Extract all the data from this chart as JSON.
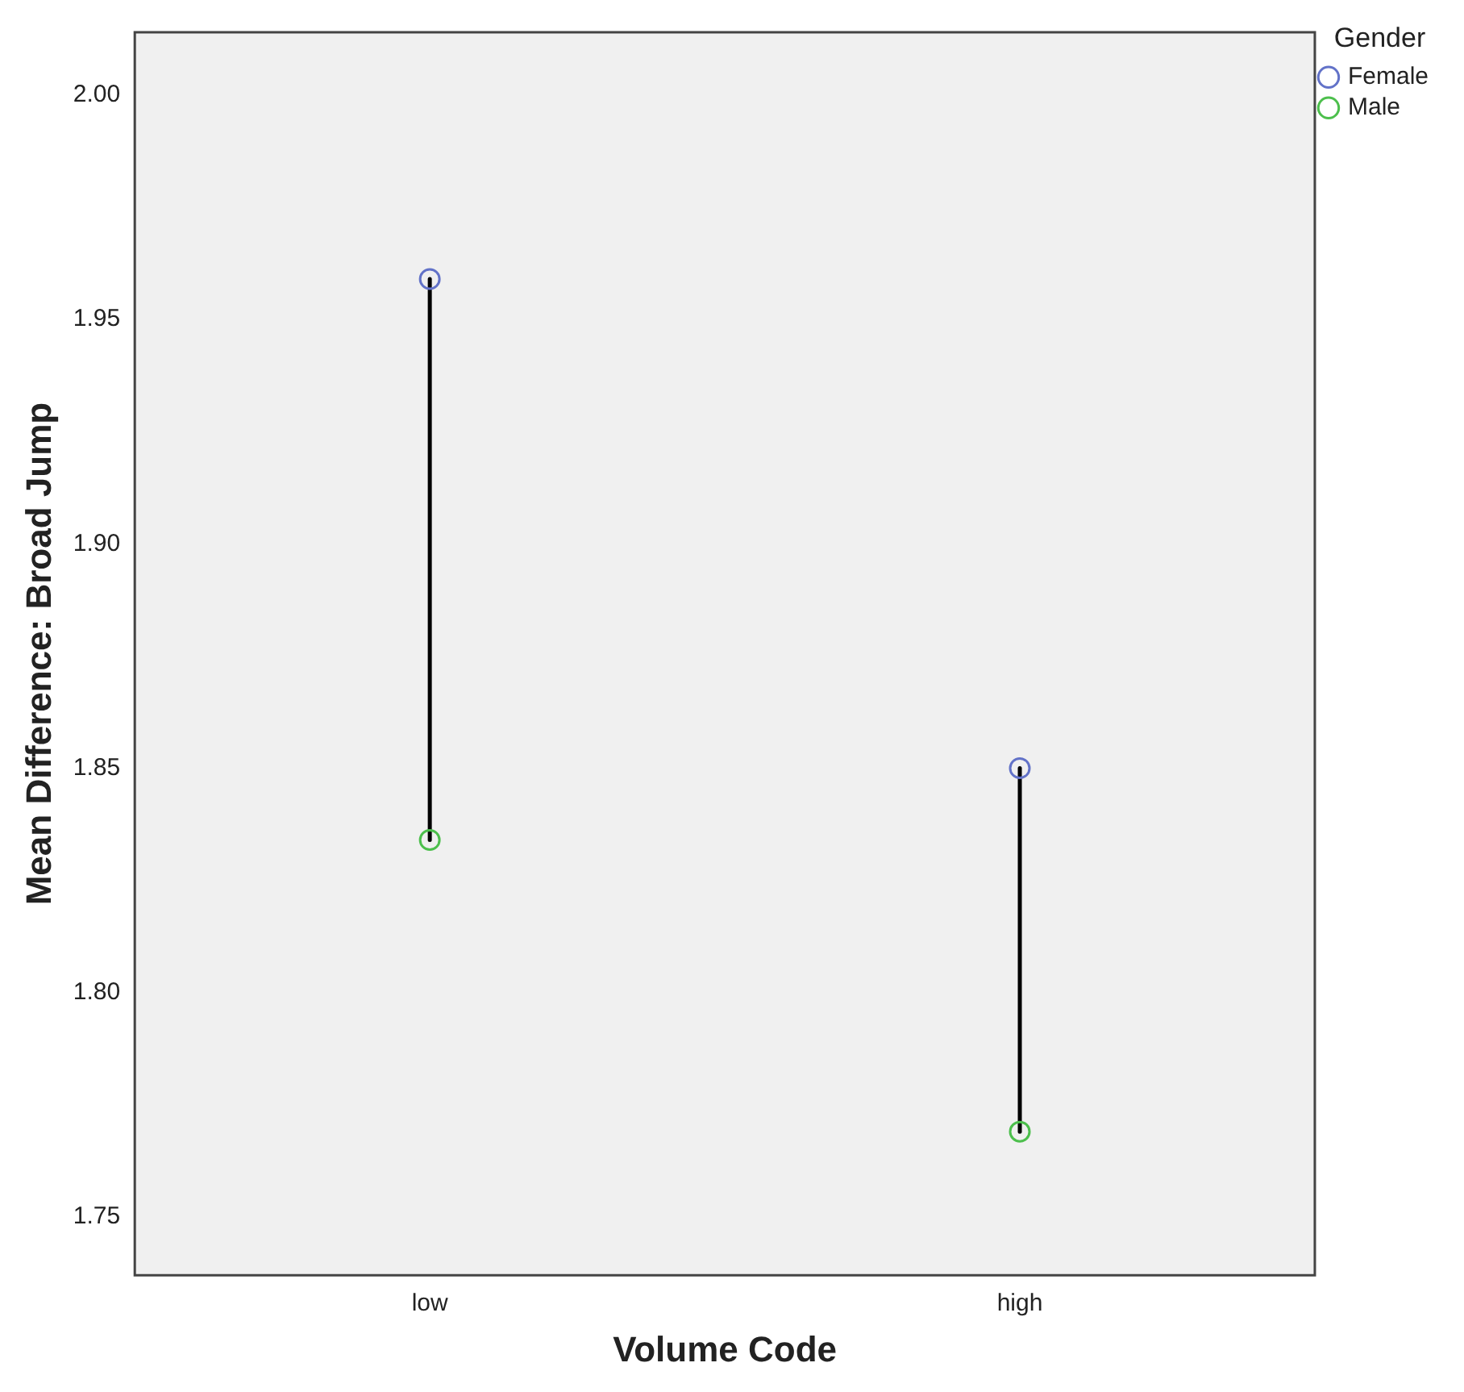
{
  "chart_data": {
    "type": "scatter",
    "xlabel": "Volume Code",
    "ylabel": "Mean Difference: Broad Jump",
    "legend_title": "Gender",
    "categories": [
      "low",
      "high"
    ],
    "series": [
      {
        "name": "Female",
        "color": "#6272c8",
        "values": [
          1.959,
          1.85
        ]
      },
      {
        "name": "Male",
        "color": "#4cbf4c",
        "values": [
          1.834,
          1.769
        ]
      }
    ],
    "ylim": [
      1.737,
      2.014
    ],
    "yticks": [
      {
        "value": 1.75,
        "label": "1.75"
      },
      {
        "value": 1.8,
        "label": "1.80"
      },
      {
        "value": 1.85,
        "label": "1.85"
      },
      {
        "value": 1.9,
        "label": "1.90"
      },
      {
        "value": 1.95,
        "label": "1.95"
      },
      {
        "value": 2.0,
        "label": "2.00"
      }
    ],
    "grid": false,
    "legend": "top right",
    "marker": "circle"
  }
}
